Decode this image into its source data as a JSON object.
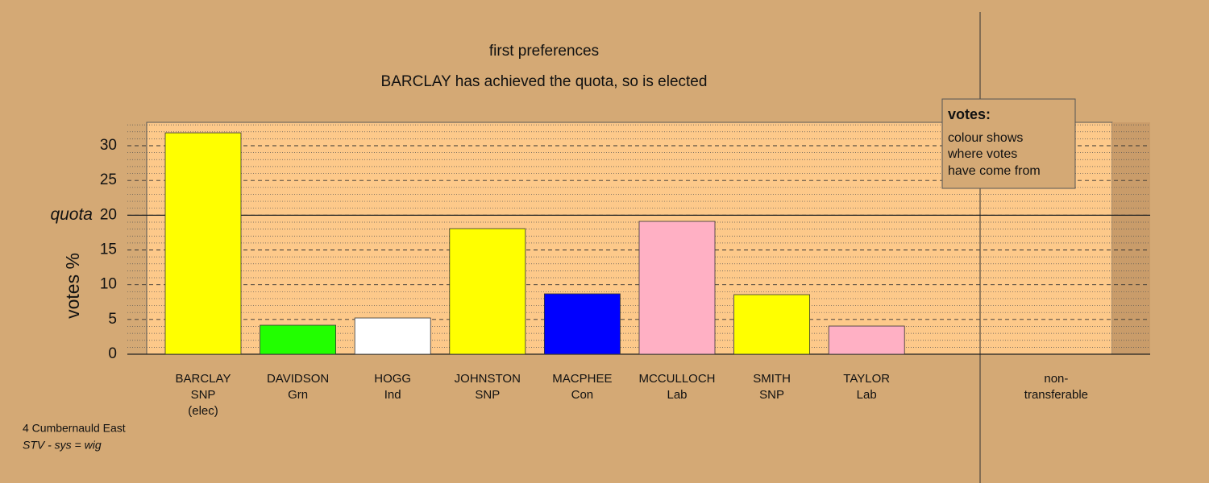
{
  "chart_data": {
    "type": "bar",
    "title": "first preferences",
    "subtitle": "BARCLAY has achieved the quota, so is elected",
    "y_label": "votes %",
    "categories": [
      [
        "BARCLAY",
        "SNP",
        "(elec)"
      ],
      [
        "DAVIDSON",
        "Grn"
      ],
      [
        "HOGG",
        "Ind"
      ],
      [
        "JOHNSTON",
        "SNP"
      ],
      [
        "MACPHEE",
        "Con"
      ],
      [
        "MCCULLOCH",
        "Lab"
      ],
      [
        "SMITH",
        "SNP"
      ],
      [
        "TAYLOR",
        "Lab"
      ],
      [
        "non-",
        "transferable"
      ]
    ],
    "values": [
      31.85,
      4.17,
      5.21,
      18.07,
      8.69,
      19.11,
      8.57,
      4.05,
      0
    ],
    "colors": [
      "#ffff00",
      "#22ff00",
      "#ffffff",
      "#ffff00",
      "#0000ff",
      "#ffb0c4",
      "#ffff00",
      "#ffb0c4",
      "#ffffff"
    ],
    "ylim": [
      0,
      33.36
    ],
    "yticks": [
      0,
      5,
      10,
      15,
      20,
      25,
      30
    ],
    "minor_yticks": [
      1,
      2,
      3,
      4,
      6,
      7,
      8,
      9,
      11,
      12,
      13,
      14,
      16,
      17,
      18,
      19,
      21,
      22,
      23,
      24,
      26,
      27,
      28,
      29,
      31,
      32,
      33
    ],
    "quota": {
      "value": 20,
      "label": "quota"
    },
    "legend": {
      "title": "votes:",
      "lines": [
        "colour shows",
        "where votes",
        "have come from"
      ]
    },
    "footer": [
      "4 Cumbernauld East",
      "STV - sys = wig"
    ],
    "grid": true
  }
}
